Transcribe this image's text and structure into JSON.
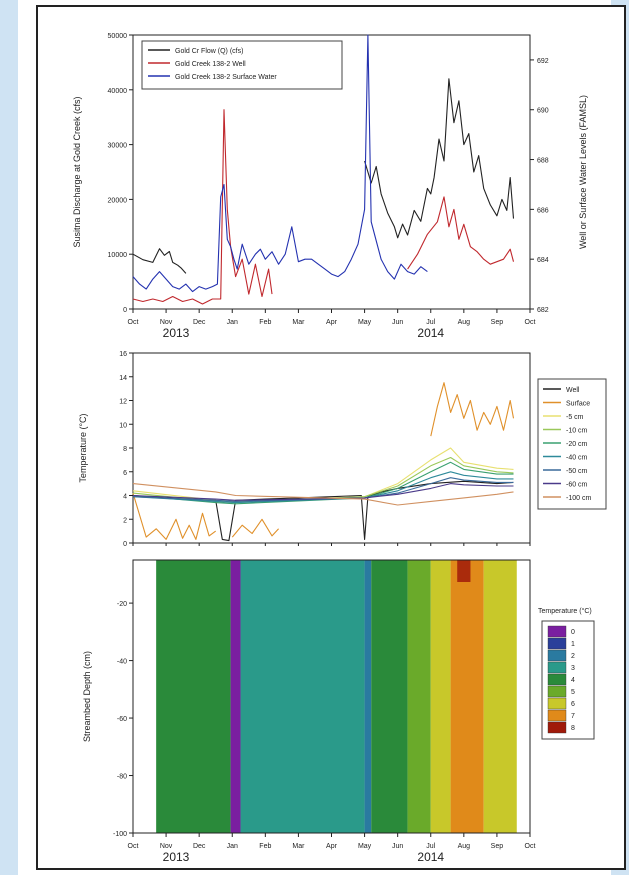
{
  "chart_data": [
    {
      "type": "line",
      "ylabel": "Susitna Discharge at Gold Creek (cfs)",
      "y2label": "Well or Surface Water Levels (FAMSL)",
      "xlim": [
        0,
        12
      ],
      "ylim": [
        0,
        50000
      ],
      "y2lim": [
        682,
        693
      ],
      "x_ticks": [
        "Oct",
        "Nov",
        "Dec",
        "Jan",
        "Feb",
        "Mar",
        "Apr",
        "May",
        "Jun",
        "Jul",
        "Aug",
        "Sep",
        "Oct"
      ],
      "y_ticks": [
        "0",
        "10000",
        "20000",
        "30000",
        "40000",
        "50000"
      ],
      "y2_ticks": [
        "682",
        "684",
        "686",
        "688",
        "690",
        "692"
      ],
      "year_labels": [
        {
          "text": "2013",
          "x": 1.3
        },
        {
          "text": "2014",
          "x": 9.0
        }
      ],
      "legend": [
        {
          "name": "Gold Cr Flow (Q) (cfs)",
          "color": "#222222"
        },
        {
          "name": "Gold Creek 138-2 Well",
          "color": "#c0282d"
        },
        {
          "name": "Gold Creek 138-2 Surface Water",
          "color": "#2432b0"
        }
      ],
      "series": [
        {
          "name": "Gold Cr Flow (Q) (cfs)",
          "color": "#222222",
          "axis": "left",
          "segments": [
            {
              "x": [
                0,
                0.3,
                0.6,
                0.8,
                0.95,
                1.1,
                1.2,
                1.35,
                1.45,
                1.6
              ],
              "y": [
                10000,
                9000,
                8500,
                11000,
                9800,
                10500,
                8500,
                8000,
                7500,
                6500
              ]
            },
            {
              "x": [
                7.0,
                7.1,
                7.2,
                7.35,
                7.5,
                7.7,
                7.9,
                8.0,
                8.15,
                8.3,
                8.5,
                8.7,
                8.9,
                9.0,
                9.1,
                9.25,
                9.4,
                9.55,
                9.7,
                9.85,
                10.0,
                10.15,
                10.3,
                10.45,
                10.6,
                10.8,
                11.0,
                11.15,
                11.3,
                11.4,
                11.5
              ],
              "y": [
                27000,
                25000,
                23000,
                26000,
                21000,
                17500,
                15000,
                13000,
                15500,
                13500,
                18000,
                16000,
                22000,
                21000,
                24000,
                31000,
                27000,
                42000,
                34000,
                38000,
                30000,
                32000,
                25000,
                28000,
                22000,
                19000,
                17000,
                20000,
                18000,
                24000,
                16500
              ]
            }
          ]
        },
        {
          "name": "Gold Creek 138-2 Well",
          "color": "#c0282d",
          "axis": "right",
          "segments": [
            {
              "x": [
                0,
                0.3,
                0.6,
                0.9,
                1.2,
                1.5,
                1.8,
                2.1,
                2.4,
                2.65,
                2.75,
                2.85,
                2.95,
                3.1,
                3.3,
                3.5,
                3.7,
                3.9,
                4.1,
                4.2
              ],
              "y": [
                682.4,
                682.3,
                682.4,
                682.3,
                682.5,
                682.3,
                682.4,
                682.2,
                682.4,
                682.4,
                690.0,
                686.0,
                684.5,
                683.3,
                684.0,
                682.6,
                683.8,
                682.5,
                683.6,
                682.6
              ]
            },
            {
              "x": [
                8.3,
                8.6,
                8.9,
                9.2,
                9.4,
                9.55,
                9.7,
                9.85,
                10.0,
                10.2,
                10.4,
                10.6,
                10.8,
                11.0,
                11.2,
                11.4,
                11.5
              ],
              "y": [
                683.6,
                684.2,
                685.0,
                685.5,
                686.5,
                685.3,
                686.0,
                684.8,
                685.4,
                684.5,
                684.3,
                684.0,
                683.8,
                683.9,
                684.0,
                684.4,
                683.9
              ]
            }
          ]
        },
        {
          "name": "Gold Creek 138-2 Surface Water",
          "color": "#2432b0",
          "axis": "right",
          "segments": [
            {
              "x": [
                0,
                0.2,
                0.4,
                0.6,
                0.8,
                1.0,
                1.2,
                1.4,
                1.6,
                1.8,
                2.0,
                2.2,
                2.4,
                2.55,
                2.65,
                2.75,
                2.85,
                2.95,
                3.05,
                3.15,
                3.3,
                3.5,
                3.7,
                3.85,
                4.0,
                4.2,
                4.4,
                4.6,
                4.8,
                5.0,
                5.2,
                5.4,
                5.6,
                5.8,
                6.0,
                6.2,
                6.4,
                6.6,
                6.8,
                7.0,
                7.1,
                7.2,
                7.3,
                7.5,
                7.7,
                7.9,
                8.1,
                8.3,
                8.5,
                8.7,
                8.9
              ],
              "y": [
                683.3,
                683.0,
                682.8,
                683.2,
                683.5,
                683.2,
                682.9,
                682.8,
                683.0,
                682.7,
                682.9,
                682.8,
                682.9,
                683.0,
                686.5,
                687.0,
                684.8,
                684.5,
                684.0,
                683.6,
                684.6,
                683.8,
                684.2,
                684.4,
                684.0,
                684.3,
                683.8,
                684.2,
                685.3,
                683.9,
                684.0,
                684.0,
                683.8,
                683.6,
                683.4,
                683.3,
                683.5,
                684.0,
                684.6,
                686.0,
                693.0,
                685.5,
                685.0,
                684.0,
                683.5,
                683.2,
                683.8,
                683.5,
                683.4,
                683.7,
                683.5
              ]
            }
          ]
        }
      ]
    },
    {
      "type": "line",
      "ylabel": "Temperature (°C)",
      "xlim": [
        0,
        12
      ],
      "ylim": [
        0,
        16
      ],
      "y_ticks": [
        "0",
        "2",
        "4",
        "6",
        "8",
        "10",
        "12",
        "14",
        "16"
      ],
      "legend": [
        {
          "name": "Well",
          "color": "#222222"
        },
        {
          "name": "Surface",
          "color": "#e0902a"
        },
        {
          "name": "-5 cm",
          "color": "#e8e070"
        },
        {
          "name": "-10 cm",
          "color": "#9ac85a"
        },
        {
          "name": "-20 cm",
          "color": "#3aa070"
        },
        {
          "name": "-40 cm",
          "color": "#2e8a9a"
        },
        {
          "name": "-50 cm",
          "color": "#3a6a9a"
        },
        {
          "name": "-60 cm",
          "color": "#4a3a8a"
        },
        {
          "name": "-100 cm",
          "color": "#d09060"
        }
      ],
      "series": [
        {
          "name": "Well",
          "color": "#222222",
          "segments": [
            {
              "x": [
                0,
                1,
                2,
                2.5,
                2.7,
                2.9,
                3.1,
                4,
                5,
                6,
                6.9,
                7.0,
                7.1,
                7.5,
                8,
                9,
                10,
                11,
                11.5
              ],
              "y": [
                4.0,
                3.8,
                3.7,
                3.6,
                0.3,
                0.2,
                3.6,
                3.7,
                3.8,
                3.9,
                4.0,
                0.3,
                3.9,
                4.3,
                4.6,
                5.0,
                5.2,
                5.0,
                5.1
              ]
            }
          ]
        },
        {
          "name": "Surface",
          "color": "#e0902a",
          "segments": [
            {
              "x": [
                0,
                0.4,
                0.7,
                1.0,
                1.3,
                1.5,
                1.7,
                1.9,
                2.1,
                2.3,
                2.5
              ],
              "y": [
                4.2,
                0.5,
                1.2,
                0.3,
                2.0,
                0.4,
                1.5,
                0.3,
                2.5,
                0.6,
                1.0
              ]
            },
            {
              "x": [
                3.0,
                3.3,
                3.6,
                3.9,
                4.2,
                4.4
              ],
              "y": [
                0.5,
                1.5,
                0.8,
                2.0,
                0.6,
                1.2
              ]
            },
            {
              "x": [
                9.0,
                9.2,
                9.4,
                9.6,
                9.8,
                10.0,
                10.2,
                10.4,
                10.6,
                10.8,
                11.0,
                11.2,
                11.4,
                11.5
              ],
              "y": [
                9.0,
                11.5,
                13.5,
                11.0,
                12.5,
                10.5,
                12.0,
                9.5,
                11.0,
                10.0,
                11.5,
                9.5,
                12.0,
                10.5
              ]
            }
          ]
        },
        {
          "name": "-5 cm",
          "color": "#e8e070",
          "segments": [
            {
              "x": [
                0,
                2.5,
                3.1,
                7.0,
                8,
                9,
                9.6,
                10,
                11,
                11.5
              ],
              "y": [
                4.4,
                3.6,
                3.5,
                3.9,
                5.0,
                7.0,
                8.0,
                6.8,
                6.3,
                6.2
              ]
            }
          ]
        },
        {
          "name": "-10 cm",
          "color": "#9ac85a",
          "segments": [
            {
              "x": [
                0,
                2.5,
                3.1,
                7.0,
                8,
                9,
                9.6,
                10,
                11,
                11.5
              ],
              "y": [
                4.2,
                3.5,
                3.4,
                3.9,
                4.8,
                6.5,
                7.2,
                6.5,
                6.0,
                5.9
              ]
            }
          ]
        },
        {
          "name": "-20 cm",
          "color": "#3aa070",
          "segments": [
            {
              "x": [
                0,
                2.5,
                3.1,
                7.0,
                8,
                9,
                9.6,
                10,
                11,
                11.5
              ],
              "y": [
                4.0,
                3.4,
                3.3,
                3.8,
                4.6,
                6.0,
                6.8,
                6.2,
                5.8,
                5.8
              ]
            }
          ]
        },
        {
          "name": "-40 cm",
          "color": "#2e8a9a",
          "segments": [
            {
              "x": [
                0,
                2.5,
                3.1,
                7.0,
                8,
                9,
                9.6,
                10,
                11,
                11.5
              ],
              "y": [
                3.9,
                3.5,
                3.4,
                3.8,
                4.4,
                5.5,
                6.0,
                5.7,
                5.4,
                5.4
              ]
            }
          ]
        },
        {
          "name": "-50 cm",
          "color": "#3a6a9a",
          "segments": [
            {
              "x": [
                0,
                2.5,
                3.1,
                7.0,
                8,
                9,
                9.6,
                10,
                11,
                11.5
              ],
              "y": [
                3.9,
                3.6,
                3.5,
                3.8,
                4.2,
                5.0,
                5.5,
                5.3,
                5.1,
                5.1
              ]
            }
          ]
        },
        {
          "name": "-60 cm",
          "color": "#4a3a8a",
          "segments": [
            {
              "x": [
                0,
                2.5,
                3.1,
                7.0,
                8,
                9,
                9.6,
                10,
                11,
                11.5
              ],
              "y": [
                4.0,
                3.7,
                3.6,
                3.8,
                4.1,
                4.6,
                5.0,
                4.9,
                4.8,
                4.8
              ]
            }
          ]
        },
        {
          "name": "-100 cm",
          "color": "#d09060",
          "segments": [
            {
              "x": [
                0,
                2.5,
                3.1,
                7.0,
                8,
                9,
                10,
                11,
                11.5
              ],
              "y": [
                5.0,
                4.3,
                4.0,
                3.7,
                3.2,
                3.5,
                3.8,
                4.1,
                4.3
              ]
            }
          ]
        }
      ]
    },
    {
      "type": "heatmap",
      "ylabel": "Streambed Depth (cm)",
      "xlim": [
        0,
        12
      ],
      "ylim": [
        -100,
        -5
      ],
      "x_ticks": [
        "Oct",
        "Nov",
        "Dec",
        "Jan",
        "Feb",
        "Mar",
        "Apr",
        "May",
        "Jun",
        "Jul",
        "Aug",
        "Sep",
        "Oct"
      ],
      "y_ticks": [
        "-20",
        "-40",
        "-60",
        "-80",
        "-100"
      ],
      "year_labels": [
        {
          "text": "2013",
          "x": 1.3
        },
        {
          "text": "2014",
          "x": 9.0
        }
      ],
      "colorbar": {
        "title": "Temperature (°C)",
        "levels": [
          "0",
          "1",
          "2",
          "3",
          "4",
          "5",
          "6",
          "7",
          "8"
        ],
        "colors": [
          "#7a1fa0",
          "#2a3f9a",
          "#2a7aa0",
          "#2a9a8a",
          "#2a8a3a",
          "#6aaa2a",
          "#c8c82a",
          "#e08a1a",
          "#a01a0a"
        ]
      },
      "columns": [
        {
          "x0": 0.7,
          "x1": 2.95,
          "level": 4
        },
        {
          "x0": 2.95,
          "x1": 3.25,
          "level": 0
        },
        {
          "x0": 3.25,
          "x1": 7.0,
          "level": 3
        },
        {
          "x0": 7.0,
          "x1": 7.2,
          "level": 2
        },
        {
          "x0": 7.2,
          "x1": 8.3,
          "level": 4
        },
        {
          "x0": 8.3,
          "x1": 9.0,
          "level": 5
        },
        {
          "x0": 9.0,
          "x1": 9.6,
          "level": 6
        },
        {
          "x0": 9.6,
          "x1": 10.6,
          "level": 7
        },
        {
          "x0": 10.6,
          "x1": 11.6,
          "level": 6
        }
      ]
    }
  ]
}
